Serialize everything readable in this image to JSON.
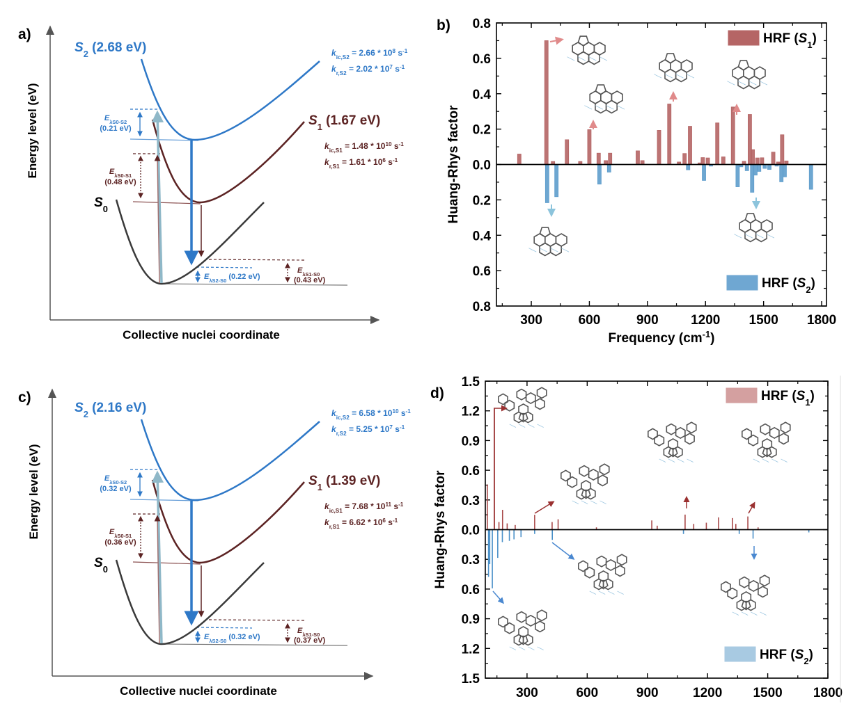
{
  "panel_a": {
    "label": "a)",
    "y_axis_label": "Energy level (eV)",
    "x_axis_label": "Collective nuclei coordinate",
    "s2_label": [
      [
        "S",
        "i"
      ],
      [
        "2",
        "sub"
      ],
      [
        " (2.68 eV)",
        ""
      ]
    ],
    "s1_label": [
      [
        "S",
        "i"
      ],
      [
        "1",
        "sub"
      ],
      [
        " (1.67 eV)",
        ""
      ]
    ],
    "s0_label": [
      [
        "S",
        "i"
      ],
      [
        "0",
        "sub"
      ]
    ],
    "k_ic_s2": [
      [
        "k",
        "i"
      ],
      [
        "ic,S2",
        "sub"
      ],
      [
        " = 2.66 * 10",
        ""
      ],
      [
        "8",
        "sup"
      ],
      [
        " s",
        ""
      ],
      [
        "-1",
        "sup"
      ]
    ],
    "k_r_s2": [
      [
        "k",
        "i"
      ],
      [
        "r,S2",
        "sub"
      ],
      [
        " = 2.02 * 10",
        ""
      ],
      [
        "7",
        "sup"
      ],
      [
        " s",
        ""
      ],
      [
        "-1",
        "sup"
      ]
    ],
    "k_ic_s1": [
      [
        "k",
        "i"
      ],
      [
        "ic,S1",
        "sub"
      ],
      [
        " = 1.48 * 10",
        ""
      ],
      [
        "10",
        "sup"
      ],
      [
        " s",
        ""
      ],
      [
        "-1",
        "sup"
      ]
    ],
    "k_r_s1": [
      [
        "k",
        "i"
      ],
      [
        "r,S1",
        "sub"
      ],
      [
        " = 1.61 * 10",
        ""
      ],
      [
        "6",
        "sup"
      ],
      [
        " s",
        ""
      ],
      [
        "-1",
        "sup"
      ]
    ],
    "e_s0_s2": [
      [
        "E",
        "i"
      ],
      [
        "λS0-S2",
        "sub"
      ]
    ],
    "e_s0_s2_value": "(0.21 eV)",
    "e_s0_s1": [
      [
        "E",
        "i"
      ],
      [
        "λS0-S1",
        "sub"
      ]
    ],
    "e_s0_s1_value": "(0.48 eV)",
    "e_s2_s0": [
      [
        "E",
        "i"
      ],
      [
        "λS2-S0",
        "sub"
      ],
      [
        " (0.22 eV)",
        ""
      ]
    ],
    "e_s1_s0": [
      [
        "E",
        "i"
      ],
      [
        "λS1-S0",
        "sub"
      ]
    ],
    "e_s1_s0_value": "(0.43 eV)"
  },
  "panel_c": {
    "label": "c)",
    "y_axis_label": "Energy level (eV)",
    "x_axis_label": "Collective nuclei coordinate",
    "s2_label": [
      [
        "S",
        "i"
      ],
      [
        "2",
        "sub"
      ],
      [
        " (2.16 eV)",
        ""
      ]
    ],
    "s1_label": [
      [
        "S",
        "i"
      ],
      [
        "1",
        "sub"
      ],
      [
        " (1.39 eV)",
        ""
      ]
    ],
    "s0_label": [
      [
        "S",
        "i"
      ],
      [
        "0",
        "sub"
      ]
    ],
    "k_ic_s2": [
      [
        "k",
        "i"
      ],
      [
        "ic,S2",
        "sub"
      ],
      [
        " = 6.58 * 10",
        ""
      ],
      [
        "10",
        "sup"
      ],
      [
        " s",
        ""
      ],
      [
        "-1",
        "sup"
      ]
    ],
    "k_r_s2": [
      [
        "k",
        "i"
      ],
      [
        "r,S2",
        "sub"
      ],
      [
        " = 5.25 * 10",
        ""
      ],
      [
        "7",
        "sup"
      ],
      [
        " s",
        ""
      ],
      [
        "-1",
        "sup"
      ]
    ],
    "k_ic_s1": [
      [
        "k",
        "i"
      ],
      [
        "ic,S1",
        "sub"
      ],
      [
        " = 7.68 * 10",
        ""
      ],
      [
        "11",
        "sup"
      ],
      [
        " s",
        ""
      ],
      [
        "-1",
        "sup"
      ]
    ],
    "k_r_s1": [
      [
        "k",
        "i"
      ],
      [
        "r,S1",
        "sub"
      ],
      [
        " = 6.62 * 10",
        ""
      ],
      [
        "6",
        "sup"
      ],
      [
        " s",
        ""
      ],
      [
        "-1",
        "sup"
      ]
    ],
    "e_s0_s2": [
      [
        "E",
        "i"
      ],
      [
        "λS0-S2",
        "sub"
      ]
    ],
    "e_s0_s2_value": "(0.32 eV)",
    "e_s0_s1": [
      [
        "E",
        "i"
      ],
      [
        "λS0-S1",
        "sub"
      ]
    ],
    "e_s0_s1_value": "(0.36 eV)",
    "e_s2_s0": [
      [
        "E",
        "i"
      ],
      [
        "λS2-S0",
        "sub"
      ],
      [
        " (0.32 eV)",
        ""
      ]
    ],
    "e_s1_s0": [
      [
        "E",
        "i"
      ],
      [
        "λS1-S0",
        "sub"
      ]
    ],
    "e_s1_s0_value": "(0.37 eV)"
  },
  "colors": {
    "s2": "#2e78c7",
    "s1": "#5c2323",
    "s0": "#3a3a3a",
    "hrf_s1_b": "#b56565",
    "hrf_s2_b": "#5e9dcc",
    "hrf_s1_d": "#a84848",
    "hrf_s2_d": "#4a90c8"
  },
  "chart_data": [
    {
      "panel_label": "b)",
      "type": "bar",
      "ylabel": "Huang-Rhys factor",
      "xlabel": [
        [
          "Frequency (cm",
          ""
        ],
        [
          "-1",
          "sup"
        ],
        [
          ")",
          ""
        ]
      ],
      "xlim": [
        120,
        1825
      ],
      "ylim": [
        -0.8,
        0.8
      ],
      "x_ticks": [
        "300",
        "600",
        "900",
        "1200",
        "1500",
        "1800"
      ],
      "y_ticks": [
        "0.8",
        "0.6",
        "0.4",
        "0.2",
        "0.0",
        "0.2",
        "0.4",
        "0.6",
        "0.8"
      ],
      "legend_placement": "top-right / bottom-right",
      "series": [
        {
          "name": [
            [
              "HRF (",
              ""
            ],
            [
              "S",
              "i"
            ],
            [
              "1",
              "sub"
            ],
            [
              ")",
              ""
            ]
          ],
          "direction": "up",
          "x": [
            238,
            378,
            412,
            484,
            553,
            600,
            648,
            685,
            707,
            850,
            874,
            960,
            1013,
            1063,
            1092,
            1120,
            1170,
            1186,
            1212,
            1261,
            1292,
            1342,
            1399,
            1429,
            1444,
            1468,
            1492,
            1550,
            1576,
            1596,
            1618
          ],
          "values": [
            0.059,
            0.7,
            0.017,
            0.14,
            0.017,
            0.197,
            0.064,
            0.022,
            0.064,
            0.077,
            0.022,
            0.193,
            0.342,
            0.014,
            0.062,
            0.216,
            0.009,
            0.039,
            0.037,
            0.235,
            0.043,
            0.325,
            0.018,
            0.283,
            0.084,
            0.037,
            0.038,
            0.07,
            0.014,
            0.168,
            0.02
          ]
        },
        {
          "name": [
            [
              "HRF (",
              ""
            ],
            [
              "S",
              "i"
            ],
            [
              "2",
              "sub"
            ],
            [
              ")",
              ""
            ]
          ],
          "direction": "down",
          "x": [
            382,
            430,
            652,
            702,
            1110,
            1192,
            1228,
            1366,
            1384,
            1414,
            1441,
            1458,
            1477,
            1506,
            1530,
            1568,
            1592,
            1609,
            1745
          ],
          "values": [
            0.216,
            0.182,
            0.111,
            0.043,
            0.03,
            0.09,
            0.009,
            0.126,
            0.013,
            0.035,
            0.157,
            0.06,
            0.039,
            0.022,
            0.028,
            0.009,
            0.098,
            0.07,
            0.14
          ]
        }
      ]
    },
    {
      "panel_label": "d)",
      "type": "bar",
      "ylabel": "Huang-Rhys factor",
      "xlabel": "",
      "xlim": [
        92,
        1800
      ],
      "ylim": [
        -1.5,
        1.5
      ],
      "x_ticks": [
        "300",
        "600",
        "900",
        "1200",
        "1500",
        "1800"
      ],
      "y_ticks": [
        "1.5",
        "1.2",
        "0.9",
        "0.6",
        "0.3",
        "0.0",
        "0.3",
        "0.6",
        "0.9",
        "1.2",
        "1.5"
      ],
      "legend_placement": "top-right / bottom-right",
      "series": [
        {
          "name": [
            [
              "HRF (",
              ""
            ],
            [
              "S",
              "i"
            ],
            [
              "1",
              "sub"
            ],
            [
              ")",
              ""
            ]
          ],
          "direction": "up",
          "x": [
            102,
            137,
            160,
            178,
            201,
            241,
            338,
            425,
            455,
            646,
            922,
            949,
            1088,
            1131,
            1194,
            1255,
            1324,
            1341,
            1401,
            1452
          ],
          "values": [
            0.456,
            1.23,
            0.077,
            0.2,
            0.063,
            0.047,
            0.15,
            0.077,
            0.105,
            0.023,
            0.093,
            0.04,
            0.152,
            0.058,
            0.07,
            0.124,
            0.117,
            0.058,
            0.133,
            0.023
          ]
        },
        {
          "name": [
            [
              "HRF (",
              ""
            ],
            [
              "S",
              "i"
            ],
            [
              "2",
              "sub"
            ],
            [
              ")",
              ""
            ]
          ],
          "direction": "down",
          "x": [
            108,
            114,
            127,
            154,
            177,
            212,
            235,
            270,
            338,
            426,
            1080,
            1358,
            1427,
            1705
          ],
          "values": [
            0.477,
            0.348,
            0.593,
            0.285,
            0.126,
            0.114,
            0.098,
            0.075,
            0.044,
            0.103,
            0.044,
            0.044,
            0.091,
            0.028
          ]
        }
      ]
    }
  ]
}
